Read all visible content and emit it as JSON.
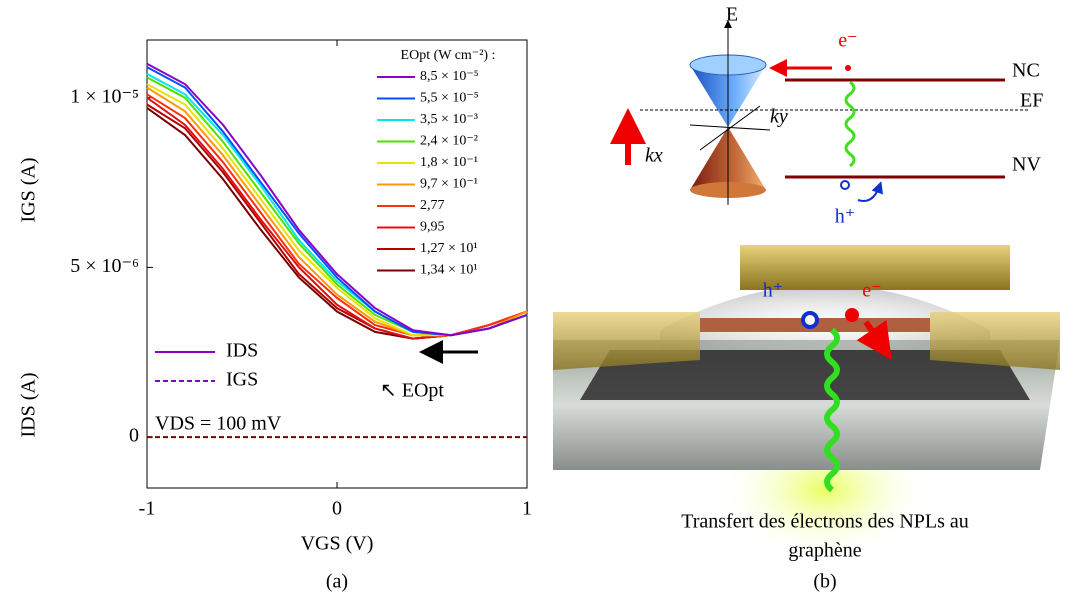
{
  "chart_data": {
    "type": "line",
    "y_label_top": "IGS (A)",
    "y_label_bottom": "IDS (A)",
    "x_label": "VGS (V)",
    "panel_label": "(a)",
    "legend_title": "EOpt (W cm⁻²) :",
    "x": [
      -1,
      -0.8,
      -0.6,
      -0.4,
      -0.2,
      0,
      0.2,
      0.4,
      0.6,
      0.8,
      1
    ],
    "xlim": [
      -1,
      1
    ],
    "xticks": [
      -1,
      0,
      1
    ],
    "ylim": [
      -1.5e-06,
      1.17e-05
    ],
    "yticks": [
      {
        "value": 1e-05,
        "label": "1 × 10⁻⁵"
      },
      {
        "value": 5e-06,
        "label": "5 × 10⁻⁶"
      },
      0
    ],
    "series": [
      {
        "name": "8,5 × 10⁻⁵",
        "color": "#8a00c8",
        "values": [
          1.1e-05,
          1.04e-05,
          9.2e-06,
          7.7e-06,
          6.1e-06,
          4.8e-06,
          3.8e-06,
          3.15e-06,
          3e-06,
          3.2e-06,
          3.6e-06
        ]
      },
      {
        "name": "5,5 × 10⁻⁵",
        "color": "#0050ff",
        "values": [
          1.09e-05,
          1.03e-05,
          9e-06,
          7.5e-06,
          6e-06,
          4.7e-06,
          3.7e-06,
          3.1e-06,
          3e-06,
          3.2e-06,
          3.6e-06
        ]
      },
      {
        "name": "3,5 × 10⁻³",
        "color": "#00e8e8",
        "values": [
          1.07e-05,
          1.01e-05,
          8.9e-06,
          7.4e-06,
          5.8e-06,
          4.6e-06,
          3.7e-06,
          3.1e-06,
          3e-06,
          3.2e-06,
          3.6e-06
        ]
      },
      {
        "name": "2,4 × 10⁻²",
        "color": "#50e000",
        "values": [
          1.06e-05,
          1e-05,
          8.7e-06,
          7.2e-06,
          5.7e-06,
          4.5e-06,
          3.6e-06,
          3.1e-06,
          3e-06,
          3.2e-06,
          3.6e-06
        ]
      },
      {
        "name": "1,8 × 10⁻¹",
        "color": "#e4e400",
        "values": [
          1.04e-05,
          9.8e-06,
          8.5e-06,
          7e-06,
          5.5e-06,
          4.4e-06,
          3.5e-06,
          3e-06,
          3e-06,
          3.2e-06,
          3.6e-06
        ]
      },
      {
        "name": "9,7 × 10⁻¹",
        "color": "#ff9a00",
        "values": [
          1.03e-05,
          9.6e-06,
          8.3e-06,
          6.8e-06,
          5.3e-06,
          4.2e-06,
          3.4e-06,
          3e-06,
          3e-06,
          3.2e-06,
          3.7e-06
        ]
      },
      {
        "name": "2,77",
        "color": "#ff3010",
        "values": [
          1.01e-05,
          9.4e-06,
          8.1e-06,
          6.6e-06,
          5.1e-06,
          4.1e-06,
          3.3e-06,
          3e-06,
          3e-06,
          3.3e-06,
          3.7e-06
        ]
      },
      {
        "name": "9,95",
        "color": "#e01010",
        "values": [
          1e-05,
          9.2e-06,
          7.9e-06,
          6.4e-06,
          5e-06,
          3.9e-06,
          3.2e-06,
          2.9e-06,
          3e-06,
          3.3e-06,
          3.7e-06
        ]
      },
      {
        "name": "1,27 × 10¹",
        "color": "#b40000",
        "values": [
          9.8e-06,
          9.1e-06,
          7.8e-06,
          6.3e-06,
          4.8e-06,
          3.8e-06,
          3.2e-06,
          2.9e-06,
          3e-06,
          3.3e-06,
          3.7e-06
        ]
      },
      {
        "name": "1,34 × 10¹",
        "color": "#780000",
        "values": [
          9.7e-06,
          8.9e-06,
          7.6e-06,
          6.1e-06,
          4.7e-06,
          3.7e-06,
          3.1e-06,
          2.9e-06,
          3e-06,
          3.3e-06,
          3.7e-06
        ]
      }
    ],
    "baseline": {
      "color": "#780000",
      "values": [
        0,
        0,
        0,
        0,
        0,
        0,
        0,
        0,
        0,
        0,
        0
      ]
    },
    "line_legend": [
      {
        "name": "IDS",
        "color": "#8a00c8",
        "style": "solid"
      },
      {
        "name": "IGS",
        "color": "#8a00c8",
        "style": "dashed"
      }
    ],
    "annotations": [
      "VDS = 100 mV",
      "↖ EOpt"
    ]
  },
  "diagram": {
    "panel_label": "(b)",
    "labels": {
      "energy": "E",
      "electron_top": "e⁻",
      "conduction": "NC",
      "fermi": "EF",
      "ky": "ky",
      "kx": "kx",
      "valence": "NV",
      "hole_top": "h⁺",
      "hole_device": "h⁺",
      "electron_device": "e⁻"
    },
    "caption": [
      "Transfert des électrons des NPLs au",
      "graphène"
    ]
  }
}
